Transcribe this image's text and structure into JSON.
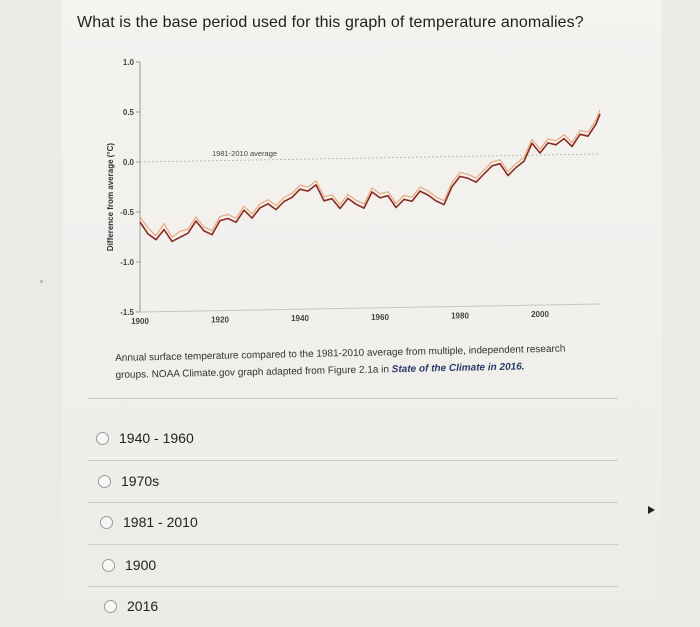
{
  "question": "What is the base period used for this graph of temperature anomalies?",
  "chart_data": {
    "type": "line",
    "ylabel": "Difference from average (°C)",
    "ylim": [
      -1.5,
      1.0
    ],
    "xlim": [
      1900,
      2015
    ],
    "yticks": [
      "1.0",
      "0.5",
      "0.0",
      "-0.5",
      "-1.0",
      "-1.5"
    ],
    "ytick_values": [
      1.0,
      0.5,
      0.0,
      -0.5,
      -1.0,
      -1.5
    ],
    "xticks": [
      "1900",
      "1920",
      "1940",
      "1960",
      "1980",
      "2000"
    ],
    "xtick_values": [
      1900,
      1920,
      1940,
      1960,
      1980,
      2000
    ],
    "reference_label": "1981-2010 average",
    "reference_value": 0.0,
    "grid": false,
    "series": [
      {
        "x": [
          1900,
          1902,
          1904,
          1906,
          1908,
          1910,
          1912,
          1914,
          1916,
          1918,
          1920,
          1922,
          1924,
          1926,
          1928,
          1930,
          1932,
          1934,
          1936,
          1938,
          1940,
          1942,
          1944,
          1946,
          1948,
          1950,
          1952,
          1954,
          1956,
          1958,
          1960,
          1962,
          1964,
          1966,
          1968,
          1970,
          1972,
          1974,
          1976,
          1978,
          1980,
          1982,
          1984,
          1986,
          1988,
          1990,
          1992,
          1994,
          1996,
          1998,
          2000,
          2002,
          2004,
          2006,
          2008,
          2010,
          2012,
          2014,
          2015
        ],
        "values": [
          -0.6,
          -0.72,
          -0.78,
          -0.68,
          -0.8,
          -0.76,
          -0.72,
          -0.6,
          -0.7,
          -0.74,
          -0.6,
          -0.58,
          -0.62,
          -0.5,
          -0.58,
          -0.48,
          -0.44,
          -0.5,
          -0.42,
          -0.38,
          -0.3,
          -0.32,
          -0.26,
          -0.42,
          -0.4,
          -0.5,
          -0.4,
          -0.46,
          -0.5,
          -0.34,
          -0.4,
          -0.38,
          -0.5,
          -0.42,
          -0.44,
          -0.34,
          -0.38,
          -0.44,
          -0.48,
          -0.3,
          -0.2,
          -0.22,
          -0.26,
          -0.18,
          -0.1,
          -0.08,
          -0.2,
          -0.12,
          -0.06,
          0.12,
          0.02,
          0.12,
          0.1,
          0.16,
          0.08,
          0.2,
          0.18,
          0.3,
          0.4
        ],
        "color": "#8a2a1e"
      },
      {
        "x": [
          1900,
          1902,
          1904,
          1906,
          1908,
          1910,
          1912,
          1914,
          1916,
          1918,
          1920,
          1922,
          1924,
          1926,
          1928,
          1930,
          1932,
          1934,
          1936,
          1938,
          1940,
          1942,
          1944,
          1946,
          1948,
          1950,
          1952,
          1954,
          1956,
          1958,
          1960,
          1962,
          1964,
          1966,
          1968,
          1970,
          1972,
          1974,
          1976,
          1978,
          1980,
          1982,
          1984,
          1986,
          1988,
          1990,
          1992,
          1994,
          1996,
          1998,
          2000,
          2002,
          2004,
          2006,
          2008,
          2010,
          2012,
          2014,
          2015
        ],
        "values": [
          -0.55,
          -0.66,
          -0.74,
          -0.62,
          -0.76,
          -0.7,
          -0.68,
          -0.56,
          -0.66,
          -0.7,
          -0.56,
          -0.54,
          -0.58,
          -0.46,
          -0.54,
          -0.44,
          -0.4,
          -0.46,
          -0.38,
          -0.34,
          -0.26,
          -0.28,
          -0.22,
          -0.38,
          -0.36,
          -0.46,
          -0.36,
          -0.42,
          -0.46,
          -0.3,
          -0.36,
          -0.34,
          -0.46,
          -0.38,
          -0.4,
          -0.3,
          -0.34,
          -0.4,
          -0.44,
          -0.26,
          -0.16,
          -0.18,
          -0.22,
          -0.14,
          -0.06,
          -0.04,
          -0.16,
          -0.08,
          -0.02,
          0.16,
          0.06,
          0.16,
          0.14,
          0.2,
          0.12,
          0.24,
          0.22,
          0.34,
          0.44
        ],
        "color": "#e8a070"
      }
    ]
  },
  "caption": {
    "text": "Annual surface temperature compared to the 1981-2010 average from multiple, independent research groups. NOAA Climate.gov graph adapted from Figure 2.1a in ",
    "italic": "State of the Climate in 2016."
  },
  "options": [
    {
      "label": "1940 - 1960"
    },
    {
      "label": "1970s"
    },
    {
      "label": "1981 - 2010"
    },
    {
      "label": "1900"
    },
    {
      "label": "2016"
    }
  ]
}
